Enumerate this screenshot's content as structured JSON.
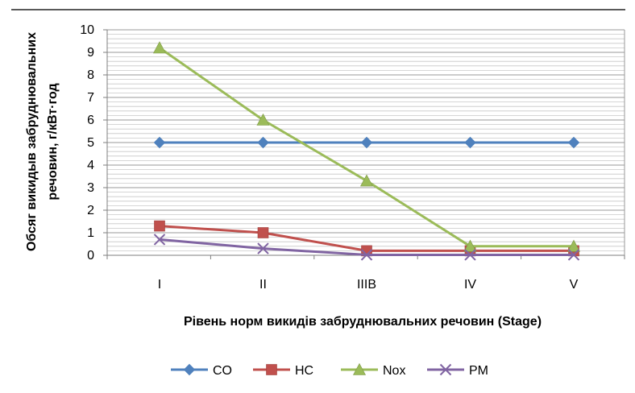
{
  "chart_data": {
    "type": "line",
    "xlabel": "Рівень норм викидів забруднювальних речовин (Stage)",
    "ylabel_lines": [
      "Обсяг викидыв забруднювальних",
      "речовин, г/кВт·год"
    ],
    "categories": [
      "I",
      "II",
      "IIIB",
      "IV",
      "V"
    ],
    "ylim": [
      0,
      10
    ],
    "yticks": [
      "0",
      "1",
      "2",
      "3",
      "4",
      "5",
      "6",
      "7",
      "8",
      "9",
      "10"
    ],
    "grid": true,
    "legend_position": "bottom",
    "series": [
      {
        "name": "CO",
        "color": "#4f81bd",
        "marker": "diamond",
        "values": [
          5,
          5,
          5,
          5,
          5
        ]
      },
      {
        "name": "HC",
        "color": "#c0504d",
        "marker": "square",
        "values": [
          1.3,
          1.0,
          0.2,
          0.2,
          0.2
        ]
      },
      {
        "name": "Nox",
        "color": "#9bbb59",
        "marker": "triangle",
        "values": [
          9.2,
          6.0,
          3.3,
          0.4,
          0.4
        ]
      },
      {
        "name": "PM",
        "color": "#8064a2",
        "marker": "x",
        "values": [
          0.7,
          0.3,
          0.02,
          0.02,
          0.02
        ]
      }
    ]
  }
}
